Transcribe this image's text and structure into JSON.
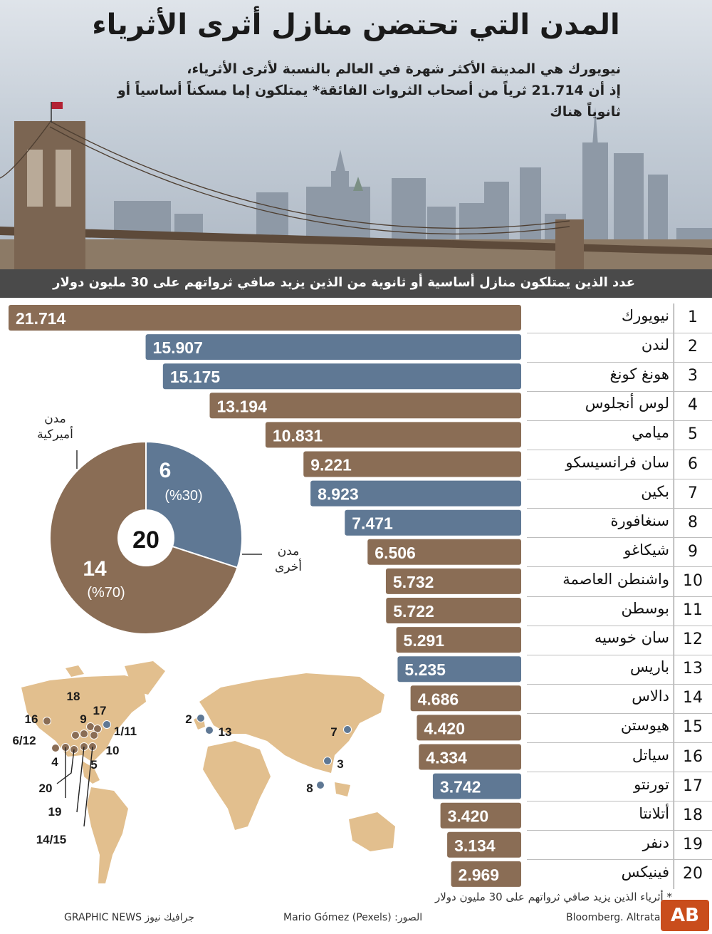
{
  "header": {
    "title": "المدن التي تحتضن منازل أثرى الأثرياء",
    "subtitle_line1": "نيويورك هي المدينة الأكثر شهرة في العالم بالنسبة لأثرى الأثرياء،",
    "subtitle_line2": "إذ أن 21.714 ثرياً من أصحاب الثروات الفائقة* يمتلكون إما مسكناً أساسياً أو ثانوياً هناك"
  },
  "band": {
    "text": "عدد الذين يمتلكون منازل أساسية أو ثانوية من الذين يزيد صافي ثرواتهم على 30 مليون دولار"
  },
  "colors": {
    "us": "#8a6d55",
    "other": "#5f7894",
    "map": "#e2bf8e",
    "dark": "#4a4a4a"
  },
  "chart_data": [
    {
      "type": "bar",
      "orientation": "horizontal",
      "title": "عدد الذين يمتلكون منازل أساسية أو ثانوية من الذين يزيد صافي ثرواتهم على 30 مليون دولار",
      "categories": [
        "نيويورك",
        "لندن",
        "هونغ كونغ",
        "لوس أنجلوس",
        "ميامي",
        "سان فرانسيسكو",
        "بكين",
        "سنغافورة",
        "شيكاغو",
        "واشنطن العاصمة",
        "بوسطن",
        "سان خوسيه",
        "باريس",
        "دالاس",
        "هيوستن",
        "سياتل",
        "تورنتو",
        "أتلانتا",
        "دنفر",
        "فينيكس"
      ],
      "ranks": [
        "1",
        "2",
        "3",
        "4",
        "5",
        "6",
        "7",
        "8",
        "9",
        "10",
        "11",
        "12",
        "13",
        "14",
        "15",
        "16",
        "17",
        "18",
        "19",
        "20"
      ],
      "values": [
        21714,
        15907,
        15175,
        13194,
        10831,
        9221,
        8923,
        7471,
        6506,
        5732,
        5722,
        5291,
        5235,
        4686,
        4420,
        4334,
        3742,
        3420,
        3134,
        2969
      ],
      "labels": [
        "21.714",
        "15.907",
        "15.175",
        "13.194",
        "10.831",
        "9.221",
        "8.923",
        "7.471",
        "6.506",
        "5.732",
        "5.722",
        "5.291",
        "5.235",
        "4.686",
        "4.420",
        "4.334",
        "3.742",
        "3.420",
        "3.134",
        "2.969"
      ],
      "groups": [
        "us",
        "other",
        "other",
        "us",
        "us",
        "us",
        "other",
        "other",
        "us",
        "us",
        "us",
        "us",
        "other",
        "us",
        "us",
        "us",
        "other",
        "us",
        "us",
        "us"
      ]
    },
    {
      "type": "pie",
      "center_label": "20",
      "slices": [
        {
          "key": "us",
          "name": "مدن أميركية",
          "value": 14,
          "value_label": "14",
          "pct_label": "(%70)"
        },
        {
          "key": "other",
          "name": "مدن أخرى",
          "value": 6,
          "value_label": "6",
          "pct_label": "(%30)"
        }
      ]
    }
  ],
  "pie_legend": {
    "us_line1": "مدن",
    "us_line2": "أميركية",
    "other_line1": "مدن",
    "other_line2": "أخرى"
  },
  "map": {
    "labels": [
      "18",
      "17",
      "16",
      "9",
      "1/11",
      "6/12",
      "10",
      "4",
      "5",
      "20",
      "19",
      "14/15",
      "2",
      "13",
      "7",
      "3",
      "8"
    ]
  },
  "footer": {
    "footnote": "* أثرياء الذين يزيد صافي ثرواتهم على 30 مليون دولار",
    "source": "Bloomberg. Altrata",
    "photo": "Mario Gómez (Pexels) :الصور",
    "agency": "GRAPHIC NEWS جرافيك نيوز",
    "logo_text": "AB"
  }
}
